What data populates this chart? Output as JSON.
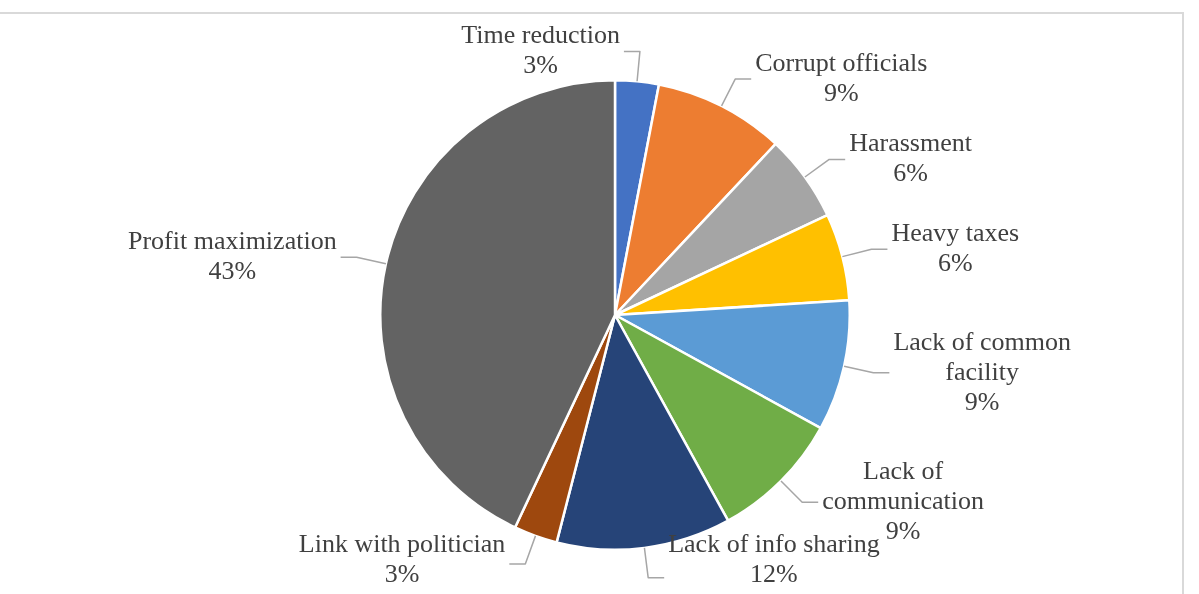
{
  "chart_data": {
    "type": "pie",
    "categories": [
      "Time reduction",
      "Corrupt officials",
      "Harassment",
      "Heavy taxes",
      "Lack of common facility",
      "Lack of communication",
      "Lack of info sharing",
      "Link with politician",
      "Profit maximization"
    ],
    "values": [
      3,
      9,
      6,
      6,
      9,
      9,
      12,
      3,
      43
    ],
    "value_labels": [
      "3%",
      "9%",
      "6%",
      "6%",
      "9%",
      "9%",
      "12%",
      "3%",
      "43%"
    ],
    "colors": [
      "#4472c4",
      "#ed7d31",
      "#a5a5a5",
      "#ffc000",
      "#5b9bd5",
      "#70ad47",
      "#264478",
      "#9e480e",
      "#636363"
    ],
    "legend": false
  }
}
